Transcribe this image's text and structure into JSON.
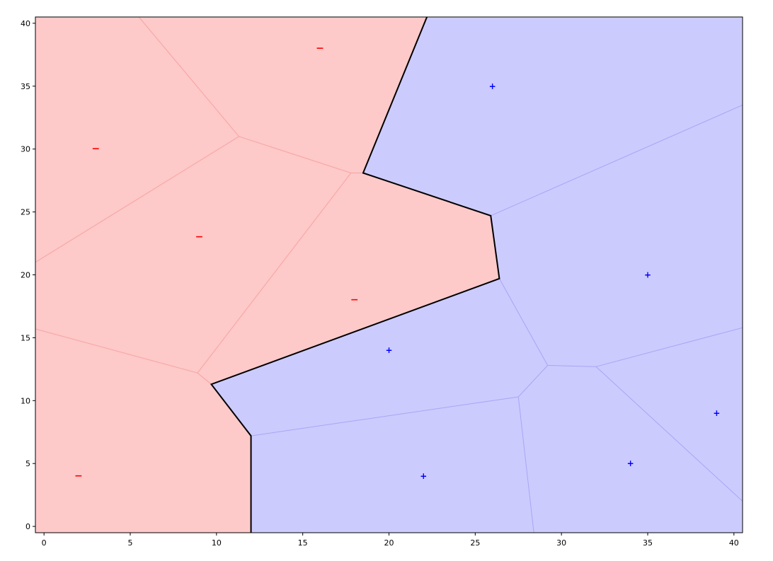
{
  "chart_data": {
    "type": "scatter",
    "title": "",
    "xlabel": "",
    "ylabel": "",
    "xlim": [
      -0.5,
      40.5
    ],
    "ylim": [
      -0.5,
      40.5
    ],
    "grid": false,
    "x_ticks": [
      0,
      5,
      10,
      15,
      20,
      25,
      30,
      35,
      40
    ],
    "y_ticks": [
      0,
      5,
      10,
      15,
      20,
      25,
      30,
      35,
      40
    ],
    "colors": {
      "negative_region": "#fdc9c9",
      "positive_region": "#cccbfe",
      "negative_edge": "#f7a3a3",
      "positive_edge": "#a8a6f5",
      "negative_marker": "#ff0000",
      "positive_marker": "#0000ff",
      "boundary": "#000000"
    },
    "series": [
      {
        "label": "−",
        "points": [
          [
            2,
            4
          ],
          [
            3,
            30
          ],
          [
            9,
            23
          ],
          [
            16,
            38
          ],
          [
            18,
            18
          ]
        ]
      },
      {
        "label": "+",
        "points": [
          [
            20,
            14
          ],
          [
            22,
            4
          ],
          [
            26,
            35
          ],
          [
            34,
            5
          ],
          [
            35,
            20
          ],
          [
            39,
            9
          ]
        ]
      }
    ],
    "decision_boundary": [
      [
        12,
        -0.5
      ],
      [
        12,
        7.2
      ],
      [
        9.7,
        11.3
      ],
      [
        26.4,
        19.7
      ],
      [
        25.9,
        24.7
      ],
      [
        18.5,
        28.1
      ],
      [
        22.2,
        40.5
      ]
    ],
    "cell_edges": [
      {
        "class": "negative",
        "points": [
          [
            -0.5,
            21
          ],
          [
            11.3,
            31
          ],
          [
            17.8,
            28.1
          ],
          [
            18.5,
            28.1
          ]
        ]
      },
      {
        "class": "negative",
        "points": [
          [
            5.5,
            40.5
          ],
          [
            11.3,
            31
          ]
        ]
      },
      {
        "class": "negative",
        "points": [
          [
            -0.5,
            15.7
          ],
          [
            8.9,
            12.2
          ],
          [
            9.7,
            11.3
          ]
        ]
      },
      {
        "class": "negative",
        "points": [
          [
            8.9,
            12.2
          ],
          [
            17.8,
            28.1
          ]
        ]
      },
      {
        "class": "positive",
        "points": [
          [
            25.9,
            24.7
          ],
          [
            40.5,
            33.5
          ]
        ]
      },
      {
        "class": "positive",
        "points": [
          [
            26.4,
            19.7
          ],
          [
            29.2,
            12.8
          ],
          [
            32,
            12.7
          ],
          [
            40.5,
            15.8
          ]
        ]
      },
      {
        "class": "positive",
        "points": [
          [
            29.2,
            12.8
          ],
          [
            27.5,
            10.3
          ],
          [
            12,
            7.2
          ]
        ]
      },
      {
        "class": "positive",
        "points": [
          [
            27.5,
            10.3
          ],
          [
            28.4,
            -0.5
          ]
        ]
      },
      {
        "class": "positive",
        "points": [
          [
            32,
            12.7
          ],
          [
            40.5,
            2
          ]
        ]
      }
    ]
  }
}
